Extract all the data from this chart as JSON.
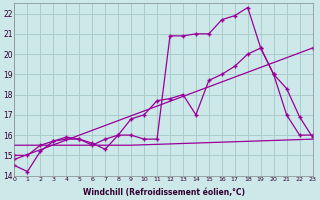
{
  "xlabel": "Windchill (Refroidissement éolien,°C)",
  "xlim": [
    0,
    23
  ],
  "ylim": [
    14,
    22.5
  ],
  "bg_color": "#cce8e8",
  "grid_color": "#aacccc",
  "line_color": "#990099",
  "line1_x": [
    0,
    1,
    2,
    3,
    4,
    5,
    6,
    7,
    8,
    9,
    10,
    11,
    12,
    13,
    14,
    15,
    16,
    17,
    18,
    19,
    20,
    21,
    22,
    23
  ],
  "line1_y": [
    14.5,
    14.2,
    15.2,
    15.7,
    15.8,
    15.8,
    15.6,
    15.3,
    16.0,
    16.0,
    15.8,
    15.8,
    20.9,
    20.9,
    21.0,
    21.0,
    21.7,
    21.9,
    22.3,
    20.3,
    19.0,
    18.3,
    16.9,
    15.9
  ],
  "line2_x": [
    0,
    1,
    2,
    3,
    4,
    5,
    6,
    7,
    8,
    9,
    10,
    11,
    12,
    13,
    14,
    15,
    16,
    17,
    18,
    19,
    20,
    21,
    22,
    23
  ],
  "line2_y": [
    15.0,
    15.0,
    15.5,
    15.7,
    15.9,
    15.8,
    15.5,
    15.8,
    16.0,
    16.8,
    17.0,
    17.7,
    17.8,
    18.0,
    17.0,
    18.7,
    19.0,
    19.4,
    20.0,
    20.3,
    19.0,
    17.0,
    16.0,
    16.0
  ],
  "line3_x": [
    0,
    23
  ],
  "line3_y": [
    14.8,
    20.3
  ],
  "line4_x": [
    0,
    9,
    23
  ],
  "line4_y": [
    15.5,
    15.5,
    15.8
  ]
}
